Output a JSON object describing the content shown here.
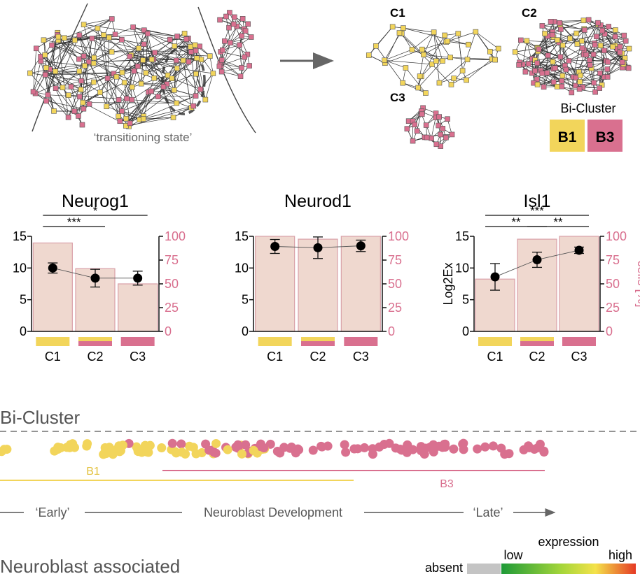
{
  "network": {
    "transition_label": "‘transitioning state’",
    "cluster_labels": [
      "C1",
      "C2",
      "C3"
    ],
    "legend_title": "Bi-Cluster",
    "legend_items": [
      {
        "label": "B1",
        "color": "#f2d55b"
      },
      {
        "label": "B3",
        "color": "#d9708f"
      }
    ]
  },
  "colors": {
    "b1": "#f2d55b",
    "b3": "#d9708f",
    "bar_fill": "#efd8cf",
    "bar_stroke": "#d9a0a8",
    "right_axis": "#d9708f"
  },
  "chart_data": [
    {
      "type": "bar",
      "title": "Neurog1",
      "categories": [
        "C1",
        "C2",
        "C3"
      ],
      "bar_values": [
        93,
        66,
        50
      ],
      "bar_axis_ylim": [
        0,
        100
      ],
      "bar_axis_ticks": [
        "0",
        "25",
        "50",
        "75",
        "100"
      ],
      "points": [
        10.0,
        8.4,
        8.4
      ],
      "errors": [
        0.8,
        1.4,
        1.1
      ],
      "point_axis_ylim": [
        0,
        15
      ],
      "point_axis_ticks": [
        "0",
        "5",
        "10",
        "15"
      ],
      "ylabel": "",
      "y2label": "",
      "category_composition": [
        [
          1,
          0
        ],
        [
          0.5,
          0.5
        ],
        [
          0,
          1
        ]
      ],
      "significance": [
        {
          "from": 0,
          "to": 1,
          "label": "***"
        },
        {
          "from": 0,
          "to": 2,
          "label": "*"
        }
      ]
    },
    {
      "type": "bar",
      "title": "Neurod1",
      "categories": [
        "C1",
        "C2",
        "C3"
      ],
      "bar_values": [
        100,
        97,
        100
      ],
      "bar_axis_ylim": [
        0,
        100
      ],
      "bar_axis_ticks": [
        "0",
        "25",
        "50",
        "75",
        "100"
      ],
      "points": [
        13.4,
        13.2,
        13.5
      ],
      "errors": [
        1.1,
        1.7,
        0.9
      ],
      "point_axis_ylim": [
        0,
        15
      ],
      "point_axis_ticks": [
        "0",
        "5",
        "10",
        "15"
      ],
      "ylabel": "",
      "y2label": "",
      "category_composition": [
        [
          1,
          0
        ],
        [
          0.5,
          0.5
        ],
        [
          0,
          1
        ]
      ],
      "significance": []
    },
    {
      "type": "bar",
      "title": "Isl1",
      "categories": [
        "C1",
        "C2",
        "C3"
      ],
      "bar_values": [
        55,
        97,
        100
      ],
      "bar_axis_ylim": [
        0,
        100
      ],
      "bar_axis_ticks": [
        "0",
        "25",
        "50",
        "75",
        "100"
      ],
      "points": [
        8.6,
        11.3,
        12.8
      ],
      "errors": [
        2.1,
        1.2,
        0.5
      ],
      "point_axis_ylim": [
        0,
        15
      ],
      "point_axis_ticks": [
        "0",
        "5",
        "10",
        "15"
      ],
      "ylabel": "Log2Ex",
      "y2label": "cells [%]",
      "category_composition": [
        [
          1,
          0
        ],
        [
          0.5,
          0.5
        ],
        [
          0,
          1
        ]
      ],
      "significance": [
        {
          "from": 0,
          "to": 1,
          "label": "**"
        },
        {
          "from": 1,
          "to": 2,
          "label": "**"
        },
        {
          "from": 0,
          "to": 2,
          "label": "***"
        }
      ]
    }
  ],
  "timeline": {
    "section_title": "Bi-Cluster",
    "b1_label": "B1",
    "b3_label": "B3",
    "axis_early": "‘Early’",
    "axis_middle": "Neuroblast Development",
    "axis_late": "‘Late’"
  },
  "footer": {
    "section_title": "Neuroblast associated",
    "expression_title": "expression",
    "absent_label": "absent",
    "low_label": "low",
    "high_label": "high"
  }
}
